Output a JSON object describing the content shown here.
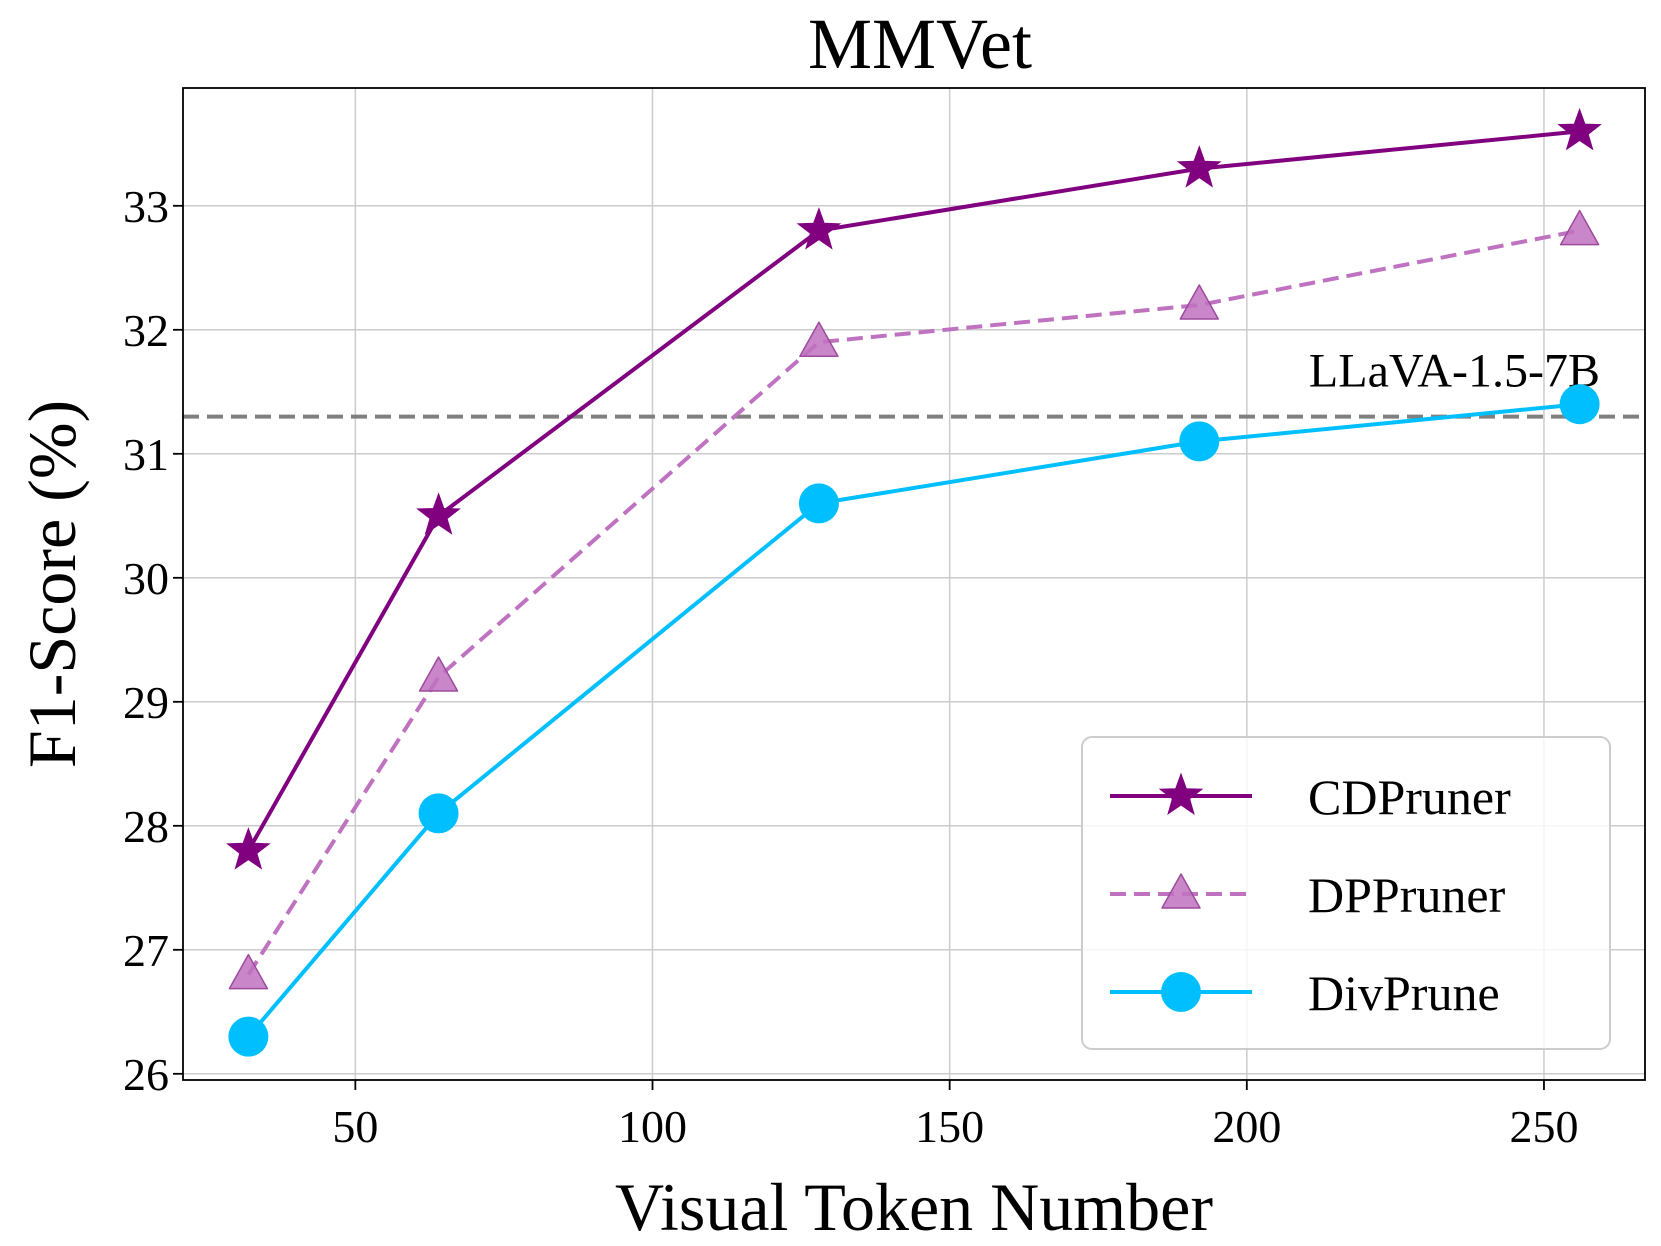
{
  "chart_data": {
    "type": "line",
    "title": "MMVet",
    "xlabel": "Visual Token Number",
    "ylabel": "F1-Score (%)",
    "xlim": [
      21,
      267
    ],
    "ylim": [
      25.95,
      33.95
    ],
    "xticks": [
      50,
      100,
      150,
      200,
      250
    ],
    "yticks": [
      26,
      27,
      28,
      29,
      30,
      31,
      32,
      33
    ],
    "grid": true,
    "legend_position": "lower-right",
    "x": [
      32,
      64,
      128,
      192,
      256
    ],
    "series": [
      {
        "name": "CDPruner",
        "values": [
          27.8,
          30.5,
          32.8,
          33.3,
          33.6
        ],
        "color": "#800080",
        "marker": "star",
        "linestyle": "solid"
      },
      {
        "name": "DPPruner",
        "values": [
          26.8,
          29.2,
          31.9,
          32.2,
          32.8
        ],
        "color": "#bf72bf",
        "marker": "triangle",
        "linestyle": "dashed"
      },
      {
        "name": "DivPrune",
        "values": [
          26.3,
          28.1,
          30.6,
          31.1,
          31.4
        ],
        "color": "#00bfff",
        "marker": "circle",
        "linestyle": "solid"
      }
    ],
    "reference_line": {
      "label": "LLaVA-1.5-7B",
      "value": 31.3,
      "color": "#808080"
    }
  }
}
